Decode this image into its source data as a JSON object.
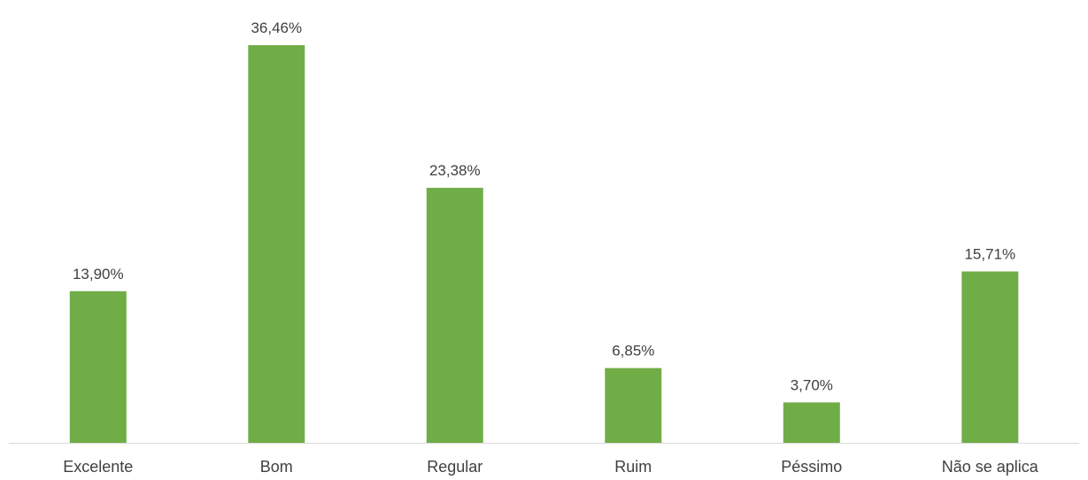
{
  "chart_data": {
    "type": "bar",
    "categories": [
      "Excelente",
      "Bom",
      "Regular",
      "Ruim",
      "Péssimo",
      "Não se aplica"
    ],
    "values": [
      13.9,
      36.46,
      23.38,
      6.85,
      3.7,
      15.71
    ],
    "data_labels": [
      "13,90%",
      "36,46%",
      "23,38%",
      "6,85%",
      "3,70%",
      "15,71%"
    ],
    "title": "",
    "xlabel": "",
    "ylabel": "",
    "bar_color": "#70ad47",
    "axis_color": "#d9d9d9",
    "grid": false,
    "legend": "none"
  }
}
